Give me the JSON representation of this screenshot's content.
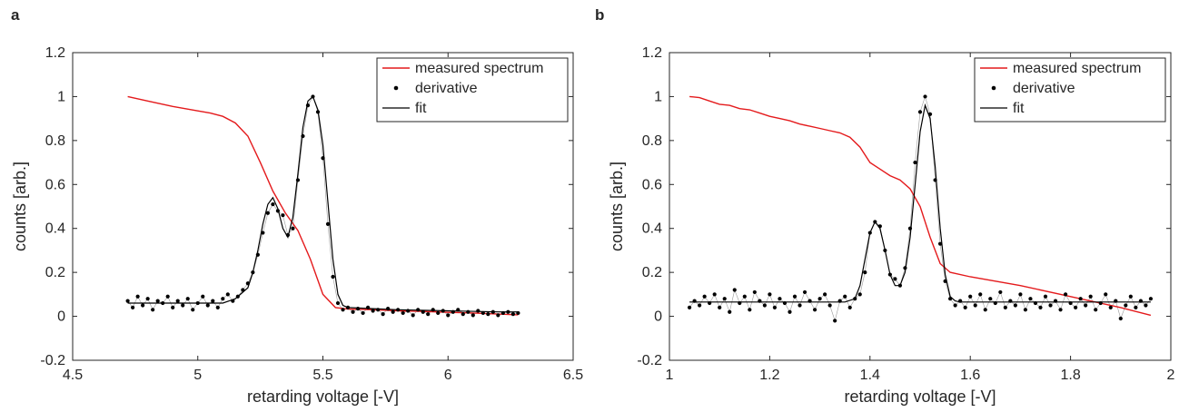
{
  "chart_data": [
    {
      "type": "line",
      "panel_label": "a",
      "xlabel": "retarding voltage [-V]",
      "ylabel": "counts [arb.]",
      "xlim": [
        4.5,
        6.5
      ],
      "ylim": [
        -0.2,
        1.2
      ],
      "xticks": [
        4.5,
        5,
        5.5,
        6,
        6.5
      ],
      "yticks": [
        -0.2,
        0,
        0.2,
        0.4,
        0.6,
        0.8,
        1,
        1.2
      ],
      "xtick_labels": [
        "4.5",
        "5",
        "5.5",
        "6",
        "6.5"
      ],
      "ytick_labels": [
        "-0.2",
        "0",
        "0.2",
        "0.4",
        "0.6",
        "0.8",
        "1",
        "1.2"
      ],
      "legend_position": "top-right",
      "legend_labels": [
        "measured spectrum",
        "derivative",
        "fit"
      ],
      "colors": {
        "measured": "#e41a1c",
        "derivative": "#000000",
        "fit": "#000000",
        "axes": "#262626"
      },
      "series": [
        {
          "name": "measured spectrum",
          "kind": "line",
          "x": [
            4.72,
            4.8,
            4.9,
            5.0,
            5.05,
            5.1,
            5.15,
            5.2,
            5.25,
            5.3,
            5.35,
            5.4,
            5.45,
            5.5,
            5.55,
            5.6,
            5.7,
            5.8,
            5.9,
            6.0,
            6.1,
            6.2,
            6.28
          ],
          "y": [
            1.0,
            0.98,
            0.955,
            0.935,
            0.925,
            0.91,
            0.88,
            0.82,
            0.7,
            0.57,
            0.47,
            0.39,
            0.26,
            0.1,
            0.04,
            0.033,
            0.03,
            0.025,
            0.022,
            0.018,
            0.015,
            0.01,
            0.007
          ]
        },
        {
          "name": "derivative",
          "kind": "scatter",
          "x": [
            4.72,
            4.74,
            4.76,
            4.78,
            4.8,
            4.82,
            4.84,
            4.86,
            4.88,
            4.9,
            4.92,
            4.94,
            4.96,
            4.98,
            5.0,
            5.02,
            5.04,
            5.06,
            5.08,
            5.1,
            5.12,
            5.14,
            5.16,
            5.18,
            5.2,
            5.22,
            5.24,
            5.26,
            5.28,
            5.3,
            5.32,
            5.34,
            5.36,
            5.38,
            5.4,
            5.42,
            5.44,
            5.46,
            5.48,
            5.5,
            5.52,
            5.54,
            5.56,
            5.58,
            5.6,
            5.62,
            5.64,
            5.66,
            5.68,
            5.7,
            5.72,
            5.74,
            5.76,
            5.78,
            5.8,
            5.82,
            5.84,
            5.86,
            5.88,
            5.9,
            5.92,
            5.94,
            5.96,
            5.98,
            6.0,
            6.02,
            6.04,
            6.06,
            6.08,
            6.1,
            6.12,
            6.14,
            6.16,
            6.18,
            6.2,
            6.22,
            6.24,
            6.26,
            6.28
          ],
          "y": [
            0.07,
            0.04,
            0.09,
            0.05,
            0.08,
            0.03,
            0.07,
            0.06,
            0.09,
            0.04,
            0.07,
            0.05,
            0.08,
            0.03,
            0.06,
            0.09,
            0.05,
            0.07,
            0.04,
            0.08,
            0.1,
            0.07,
            0.09,
            0.12,
            0.15,
            0.2,
            0.28,
            0.38,
            0.47,
            0.51,
            0.48,
            0.46,
            0.37,
            0.4,
            0.62,
            0.82,
            0.96,
            1.0,
            0.93,
            0.72,
            0.42,
            0.18,
            0.06,
            0.03,
            0.04,
            0.02,
            0.035,
            0.015,
            0.04,
            0.025,
            0.03,
            0.01,
            0.035,
            0.02,
            0.03,
            0.015,
            0.025,
            0.005,
            0.03,
            0.02,
            0.01,
            0.03,
            0.015,
            0.025,
            0.005,
            0.02,
            0.03,
            0.01,
            0.02,
            0.005,
            0.025,
            0.015,
            0.01,
            0.02,
            0.005,
            0.015,
            0.02,
            0.01,
            0.015
          ]
        },
        {
          "name": "fit",
          "kind": "line",
          "x": [
            4.72,
            4.8,
            4.9,
            5.0,
            5.1,
            5.15,
            5.2,
            5.22,
            5.24,
            5.26,
            5.28,
            5.3,
            5.32,
            5.34,
            5.36,
            5.38,
            5.4,
            5.42,
            5.44,
            5.46,
            5.48,
            5.5,
            5.52,
            5.54,
            5.56,
            5.58,
            5.6,
            5.7,
            5.8,
            6.0,
            6.2,
            6.28
          ],
          "y": [
            0.06,
            0.06,
            0.06,
            0.06,
            0.06,
            0.08,
            0.13,
            0.2,
            0.3,
            0.42,
            0.51,
            0.54,
            0.49,
            0.4,
            0.36,
            0.45,
            0.65,
            0.86,
            0.98,
            1.0,
            0.94,
            0.78,
            0.52,
            0.26,
            0.1,
            0.05,
            0.04,
            0.035,
            0.03,
            0.025,
            0.02,
            0.02
          ]
        }
      ]
    },
    {
      "type": "line",
      "panel_label": "b",
      "xlabel": "retarding voltage [-V]",
      "ylabel": "counts [arb.]",
      "xlim": [
        1,
        2
      ],
      "ylim": [
        -0.2,
        1.2
      ],
      "xticks": [
        1,
        1.2,
        1.4,
        1.6,
        1.8,
        2
      ],
      "yticks": [
        -0.2,
        0,
        0.2,
        0.4,
        0.6,
        0.8,
        1,
        1.2
      ],
      "xtick_labels": [
        "1",
        "1.2",
        "1.4",
        "1.6",
        "1.8",
        "2"
      ],
      "ytick_labels": [
        "-0.2",
        "0",
        "0.2",
        "0.4",
        "0.6",
        "0.8",
        "1",
        "1.2"
      ],
      "legend_position": "top-right",
      "legend_labels": [
        "measured spectrum",
        "derivative",
        "fit"
      ],
      "colors": {
        "measured": "#e41a1c",
        "derivative": "#000000",
        "fit": "#000000",
        "axes": "#262626"
      },
      "series": [
        {
          "name": "measured spectrum",
          "kind": "line",
          "x": [
            1.04,
            1.06,
            1.08,
            1.1,
            1.12,
            1.14,
            1.16,
            1.18,
            1.2,
            1.22,
            1.24,
            1.26,
            1.28,
            1.3,
            1.32,
            1.34,
            1.36,
            1.38,
            1.4,
            1.42,
            1.44,
            1.46,
            1.48,
            1.5,
            1.52,
            1.54,
            1.56,
            1.6,
            1.7,
            1.8,
            1.9,
            1.96
          ],
          "y": [
            1.0,
            0.995,
            0.98,
            0.965,
            0.96,
            0.945,
            0.94,
            0.925,
            0.91,
            0.9,
            0.89,
            0.875,
            0.865,
            0.855,
            0.845,
            0.835,
            0.815,
            0.77,
            0.7,
            0.67,
            0.64,
            0.62,
            0.58,
            0.5,
            0.36,
            0.24,
            0.2,
            0.18,
            0.14,
            0.09,
            0.04,
            0.005
          ]
        },
        {
          "name": "derivative",
          "kind": "scatter",
          "x": [
            1.04,
            1.05,
            1.06,
            1.07,
            1.08,
            1.09,
            1.1,
            1.11,
            1.12,
            1.13,
            1.14,
            1.15,
            1.16,
            1.17,
            1.18,
            1.19,
            1.2,
            1.21,
            1.22,
            1.23,
            1.24,
            1.25,
            1.26,
            1.27,
            1.28,
            1.29,
            1.3,
            1.31,
            1.32,
            1.33,
            1.34,
            1.35,
            1.36,
            1.37,
            1.38,
            1.39,
            1.4,
            1.41,
            1.42,
            1.43,
            1.44,
            1.45,
            1.46,
            1.47,
            1.48,
            1.49,
            1.5,
            1.51,
            1.52,
            1.53,
            1.54,
            1.55,
            1.56,
            1.57,
            1.58,
            1.59,
            1.6,
            1.61,
            1.62,
            1.63,
            1.64,
            1.65,
            1.66,
            1.67,
            1.68,
            1.69,
            1.7,
            1.71,
            1.72,
            1.73,
            1.74,
            1.75,
            1.76,
            1.77,
            1.78,
            1.79,
            1.8,
            1.81,
            1.82,
            1.83,
            1.84,
            1.85,
            1.86,
            1.87,
            1.88,
            1.89,
            1.9,
            1.91,
            1.92,
            1.93,
            1.94,
            1.95,
            1.96
          ],
          "y": [
            0.04,
            0.07,
            0.05,
            0.09,
            0.06,
            0.1,
            0.04,
            0.08,
            0.02,
            0.12,
            0.06,
            0.09,
            0.03,
            0.11,
            0.07,
            0.05,
            0.1,
            0.04,
            0.08,
            0.06,
            0.02,
            0.09,
            0.05,
            0.11,
            0.07,
            0.03,
            0.08,
            0.1,
            0.05,
            -0.02,
            0.07,
            0.09,
            0.04,
            0.08,
            0.1,
            0.2,
            0.38,
            0.43,
            0.41,
            0.3,
            0.19,
            0.17,
            0.14,
            0.22,
            0.4,
            0.7,
            0.93,
            1.0,
            0.92,
            0.62,
            0.33,
            0.16,
            0.08,
            0.05,
            0.07,
            0.04,
            0.09,
            0.05,
            0.1,
            0.03,
            0.08,
            0.06,
            0.11,
            0.04,
            0.07,
            0.05,
            0.1,
            0.03,
            0.08,
            0.06,
            0.04,
            0.09,
            0.05,
            0.07,
            0.03,
            0.1,
            0.06,
            0.04,
            0.08,
            0.05,
            0.09,
            0.03,
            0.06,
            0.1,
            0.04,
            0.07,
            -0.01,
            0.05,
            0.09,
            0.04,
            0.07,
            0.05,
            0.08
          ]
        },
        {
          "name": "fit",
          "kind": "line",
          "x": [
            1.04,
            1.1,
            1.2,
            1.3,
            1.35,
            1.37,
            1.38,
            1.39,
            1.4,
            1.41,
            1.42,
            1.43,
            1.44,
            1.45,
            1.46,
            1.47,
            1.48,
            1.49,
            1.5,
            1.51,
            1.52,
            1.53,
            1.54,
            1.55,
            1.56,
            1.57,
            1.58,
            1.6,
            1.7,
            1.8,
            1.9,
            1.96
          ],
          "y": [
            0.065,
            0.065,
            0.065,
            0.065,
            0.065,
            0.08,
            0.14,
            0.26,
            0.38,
            0.43,
            0.4,
            0.3,
            0.19,
            0.14,
            0.14,
            0.2,
            0.36,
            0.6,
            0.84,
            0.96,
            0.9,
            0.68,
            0.4,
            0.19,
            0.09,
            0.07,
            0.065,
            0.065,
            0.065,
            0.065,
            0.065,
            0.065
          ]
        }
      ]
    }
  ]
}
